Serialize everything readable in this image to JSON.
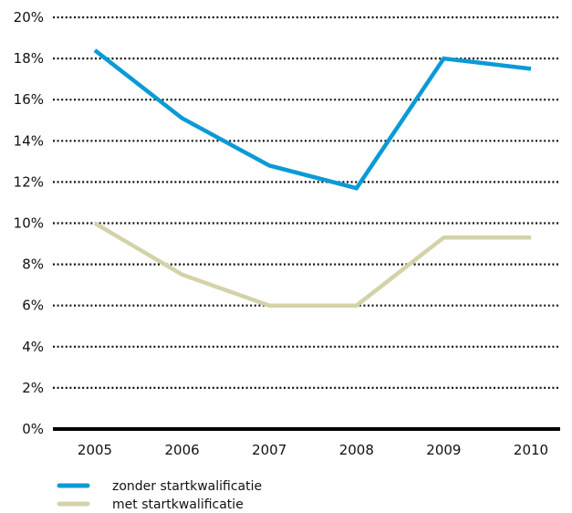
{
  "chart_data": {
    "type": "line",
    "categories": [
      "2005",
      "2006",
      "2007",
      "2008",
      "2009",
      "2010"
    ],
    "series": [
      {
        "name": "zonder startkwalificatie",
        "color": "#0b9ad6",
        "values": [
          18.4,
          15.1,
          12.8,
          11.7,
          18.0,
          17.5
        ]
      },
      {
        "name": "met startkwalificatie",
        "color": "#d3d2a9",
        "values": [
          10.0,
          7.5,
          6.0,
          6.0,
          9.3,
          9.3
        ]
      }
    ],
    "y_ticks": [
      "0%",
      "2%",
      "4%",
      "6%",
      "8%",
      "10%",
      "12%",
      "14%",
      "16%",
      "18%",
      "20%"
    ],
    "ylim": [
      0,
      20
    ],
    "grid": "dotted horizontal",
    "legend_position": "bottom-left"
  }
}
